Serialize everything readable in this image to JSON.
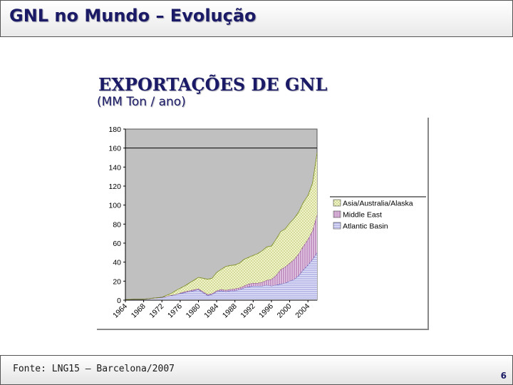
{
  "slide": {
    "title": "GNL no Mundo – Evolução",
    "heading": "EXPORTAÇÕES DE GNL",
    "subheading": "(MM Ton / ano)",
    "footer_source": "Fonte: LNG15 – Barcelona/2007",
    "page_number": "6"
  },
  "chart_data": {
    "type": "area",
    "stacked": true,
    "title": "EXPORTAÇÕES DE GNL",
    "subtitle": "(MM Ton / ano)",
    "xlabel": "",
    "ylabel": "",
    "ylim": [
      0,
      180
    ],
    "yticks": [
      0,
      20,
      40,
      60,
      80,
      100,
      120,
      140,
      160,
      180
    ],
    "xticks": [
      "1964",
      "1968",
      "1972",
      "1976",
      "1980",
      "1984",
      "1988",
      "1992",
      "1996",
      "2000",
      "2004"
    ],
    "reference_line": 160,
    "grid": false,
    "legend_position": "right",
    "x": [
      1964,
      1965,
      1966,
      1967,
      1968,
      1969,
      1970,
      1971,
      1972,
      1973,
      1974,
      1975,
      1976,
      1977,
      1978,
      1979,
      1980,
      1981,
      1982,
      1983,
      1984,
      1985,
      1986,
      1987,
      1988,
      1989,
      1990,
      1991,
      1992,
      1993,
      1994,
      1995,
      1996,
      1997,
      1998,
      1999,
      2000,
      2001,
      2002,
      2003,
      2004,
      2005,
      2006
    ],
    "series": [
      {
        "name": "Atlantic Basin",
        "color": "#c8c8f0",
        "values": [
          0.5,
          0.8,
          1,
          1,
          1,
          1.5,
          2,
          2.5,
          3,
          4,
          5,
          6,
          7,
          8,
          9,
          10,
          11,
          8,
          5,
          6,
          9,
          10,
          9,
          10,
          10,
          11,
          13,
          14,
          15,
          15,
          15,
          16,
          15,
          16,
          17,
          18,
          20,
          22,
          26,
          32,
          37,
          43,
          50
        ]
      },
      {
        "name": "Middle East",
        "color": "#c090c0",
        "values": [
          0,
          0,
          0,
          0,
          0,
          0,
          0,
          0,
          0,
          0,
          0,
          0,
          0.5,
          1,
          1,
          1,
          1,
          1,
          1,
          1,
          1,
          1.5,
          1.5,
          1.5,
          2,
          2,
          2,
          3,
          3,
          3,
          4,
          5,
          7,
          10,
          15,
          17,
          19,
          21,
          23,
          25,
          27,
          30,
          40
        ]
      },
      {
        "name": "Asia/Australia/Alaska",
        "color": "#e2eaa0",
        "values": [
          0,
          0,
          0,
          0,
          0,
          0,
          0,
          0,
          0,
          1,
          2,
          4,
          5,
          6,
          8,
          10,
          12,
          14,
          16,
          16,
          19,
          21,
          25,
          25,
          25,
          26,
          28,
          28,
          29,
          31,
          33,
          35,
          35,
          38,
          40,
          40,
          42,
          43,
          44,
          46,
          46,
          50,
          65
        ]
      }
    ]
  }
}
